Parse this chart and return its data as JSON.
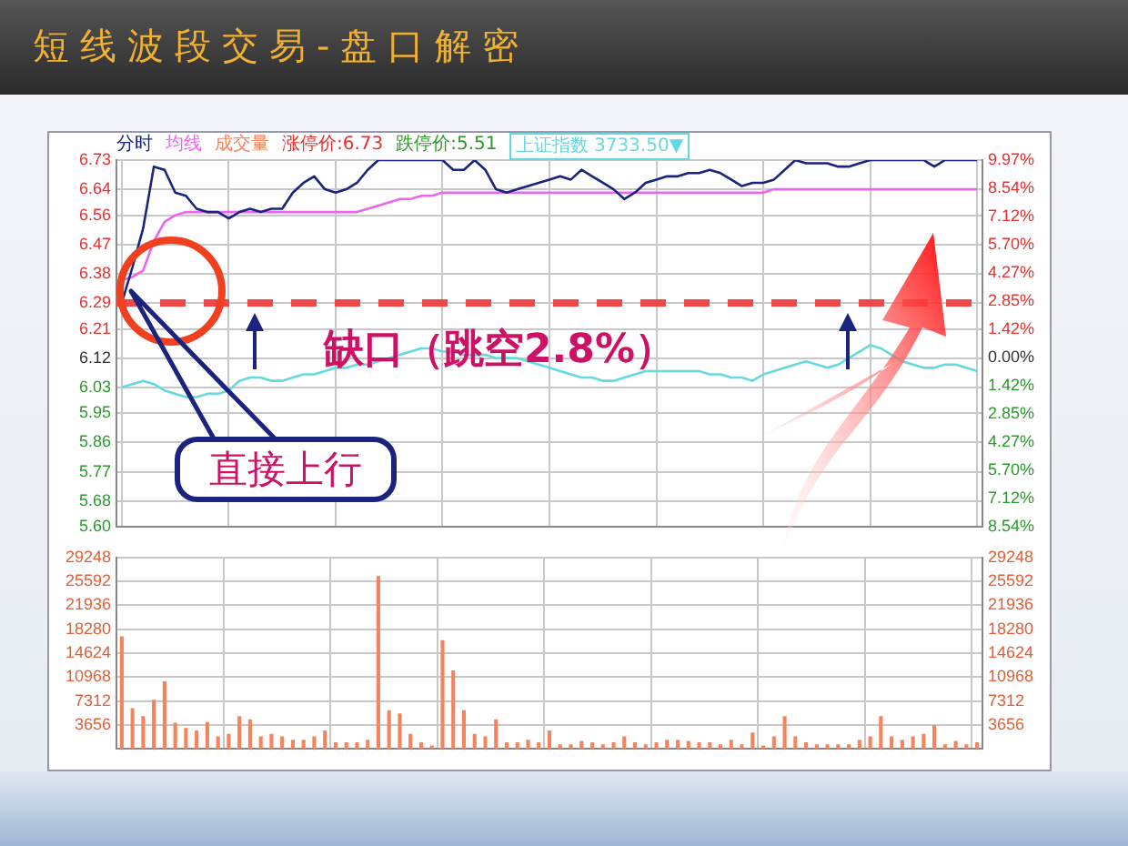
{
  "chart_data": [
    {
      "type": "line",
      "title": "短线波段交易-盘口解密",
      "categories": [
        null,
        null,
        null,
        null,
        null,
        null,
        null,
        null,
        null,
        null,
        null,
        null,
        null,
        null,
        null,
        null,
        null,
        null,
        null,
        null,
        null,
        null,
        null,
        null,
        null,
        null,
        null,
        null,
        null,
        null,
        null,
        null,
        null,
        null,
        null,
        null,
        null,
        null,
        null,
        null,
        null,
        null,
        null,
        null,
        null,
        null,
        null,
        null,
        null,
        null,
        null,
        null,
        null,
        null,
        null,
        null,
        null,
        null,
        null,
        null,
        null,
        null,
        null,
        null,
        null,
        null,
        null,
        null,
        null,
        null,
        null,
        null,
        null,
        null,
        null,
        null,
        null,
        null,
        null,
        null,
        null
      ],
      "series": [
        {
          "name": "分时",
          "color": "#1a237e",
          "values": [
            6.29,
            6.4,
            6.52,
            6.71,
            6.7,
            6.63,
            6.62,
            6.58,
            6.57,
            6.57,
            6.55,
            6.57,
            6.58,
            6.57,
            6.58,
            6.58,
            6.63,
            6.66,
            6.68,
            6.64,
            6.63,
            6.64,
            6.66,
            6.7,
            6.73,
            6.73,
            6.73,
            6.73,
            6.73,
            6.73,
            6.73,
            6.7,
            6.7,
            6.73,
            6.7,
            6.64,
            6.63,
            6.64,
            6.65,
            6.66,
            6.67,
            6.68,
            6.67,
            6.7,
            6.68,
            6.66,
            6.64,
            6.61,
            6.63,
            6.66,
            6.67,
            6.68,
            6.68,
            6.69,
            6.69,
            6.7,
            6.69,
            6.67,
            6.65,
            6.66,
            6.66,
            6.67,
            6.7,
            6.73,
            6.72,
            6.72,
            6.72,
            6.71,
            6.71,
            6.72,
            6.73,
            6.73,
            6.73,
            6.73,
            6.73,
            6.73,
            6.71,
            6.73,
            6.73,
            6.73,
            6.73
          ]
        },
        {
          "name": "均线",
          "color": "#ee66ee",
          "values": [
            6.36,
            6.37,
            6.39,
            6.48,
            6.54,
            6.56,
            6.57,
            6.57,
            6.57,
            6.57,
            6.57,
            6.57,
            6.57,
            6.57,
            6.57,
            6.57,
            6.57,
            6.57,
            6.57,
            6.57,
            6.57,
            6.57,
            6.57,
            6.58,
            6.59,
            6.6,
            6.61,
            6.61,
            6.62,
            6.62,
            6.63,
            6.63,
            6.63,
            6.63,
            6.63,
            6.63,
            6.63,
            6.63,
            6.63,
            6.63,
            6.63,
            6.63,
            6.63,
            6.63,
            6.63,
            6.63,
            6.63,
            6.63,
            6.63,
            6.63,
            6.63,
            6.63,
            6.63,
            6.63,
            6.63,
            6.63,
            6.63,
            6.63,
            6.63,
            6.63,
            6.63,
            6.64,
            6.64,
            6.64,
            6.64,
            6.64,
            6.64,
            6.64,
            6.64,
            6.64,
            6.64,
            6.64,
            6.64,
            6.64,
            6.64,
            6.64,
            6.64,
            6.64,
            6.64,
            6.64,
            6.64
          ]
        },
        {
          "name": "上证指数",
          "color": "#66d9e0",
          "values": [
            6.03,
            6.04,
            6.05,
            6.04,
            6.02,
            6.01,
            6.0,
            6.0,
            6.01,
            6.01,
            6.02,
            6.05,
            6.06,
            6.06,
            6.05,
            6.05,
            6.06,
            6.07,
            6.07,
            6.08,
            6.09,
            6.09,
            6.1,
            6.1,
            6.11,
            6.12,
            6.13,
            6.14,
            6.15,
            6.15,
            6.14,
            6.14,
            6.13,
            6.13,
            6.13,
            6.12,
            6.12,
            6.12,
            6.11,
            6.1,
            6.09,
            6.08,
            6.07,
            6.06,
            6.06,
            6.05,
            6.05,
            6.06,
            6.07,
            6.08,
            6.08,
            6.08,
            6.08,
            6.08,
            6.08,
            6.07,
            6.07,
            6.06,
            6.06,
            6.05,
            6.07,
            6.08,
            6.09,
            6.1,
            6.11,
            6.1,
            6.09,
            6.1,
            6.12,
            6.14,
            6.16,
            6.15,
            6.13,
            6.11,
            6.1,
            6.09,
            6.09,
            6.1,
            6.1,
            6.09,
            6.08
          ]
        }
      ],
      "ylim": [
        5.6,
        6.73
      ],
      "yticks": [
        {
          "value": 5.6,
          "label": "5.60"
        },
        5.68,
        5.77,
        5.86,
        5.95,
        6.03,
        6.12,
        6.21,
        6.29,
        6.38,
        6.47,
        6.56,
        6.64,
        6.73
      ],
      "y2lim": [
        -8.54,
        9.97
      ],
      "y2ticks": [
        {
          "value": -8.54,
          "label": "8.54%"
        },
        {
          "value": -7.12,
          "label": "7.12%"
        },
        {
          "value": -5.7,
          "label": "5.70%"
        },
        {
          "value": -4.27,
          "label": "4.27%"
        },
        {
          "value": -2.85,
          "label": "2.85%"
        },
        {
          "value": -1.42,
          "label": "1.42%"
        },
        {
          "value": 0,
          "label": "0.00%"
        },
        {
          "value": 1.42,
          "label": "1.42%"
        },
        {
          "value": 2.85,
          "label": "2.85%"
        },
        {
          "value": 4.27,
          "label": "4.27%"
        },
        {
          "value": 5.7,
          "label": "5.70%"
        },
        {
          "value": 7.12,
          "label": "7.12%"
        },
        {
          "value": 8.54,
          "label": "8.54%"
        },
        {
          "value": 9.97,
          "label": "9.97%"
        }
      ],
      "grid": true,
      "legend": "top left",
      "ref_lines": [
        {
          "axis": "y",
          "value": 6.29,
          "color": "#f04848",
          "line_style": "dashed"
        }
      ],
      "annotations": [
        "涨停价:6.73",
        "跌停价:5.51",
        "3733.50▼",
        "缺口（跳空2.8%）",
        "直接上行"
      ]
    },
    {
      "type": "bar",
      "categories": [
        null,
        null,
        null,
        null,
        null,
        null,
        null,
        null,
        null,
        null,
        null,
        null,
        null,
        null,
        null,
        null,
        null,
        null,
        null,
        null,
        null,
        null,
        null,
        null,
        null,
        null,
        null,
        null,
        null,
        null,
        null,
        null,
        null,
        null,
        null,
        null,
        null,
        null,
        null,
        null,
        null,
        null,
        null,
        null,
        null,
        null,
        null,
        null,
        null,
        null,
        null,
        null,
        null,
        null,
        null,
        null,
        null,
        null,
        null,
        null,
        null,
        null,
        null,
        null,
        null,
        null,
        null,
        null,
        null,
        null,
        null,
        null,
        null,
        null,
        null,
        null,
        null,
        null,
        null,
        null,
        null
      ],
      "series": [
        {
          "name": "成交量",
          "color": "#f4845f",
          "values": [
            17200,
            6200,
            5000,
            7500,
            10300,
            4000,
            3200,
            2800,
            4100,
            1900,
            2300,
            5000,
            4500,
            1900,
            2300,
            1900,
            1400,
            1400,
            1900,
            2800,
            1000,
            1000,
            1000,
            1400,
            26400,
            5900,
            5400,
            2300,
            1000,
            500,
            16600,
            12000,
            5900,
            2300,
            1900,
            4500,
            1000,
            1000,
            1400,
            1000,
            2800,
            700,
            700,
            1200,
            1000,
            700,
            1000,
            1900,
            1000,
            700,
            1000,
            1400,
            1400,
            1200,
            1000,
            1000,
            700,
            1400,
            700,
            2500,
            500,
            1900,
            5000,
            1900,
            1000,
            700,
            700,
            700,
            700,
            1400,
            1900,
            5000,
            1900,
            1400,
            1900,
            2300,
            3600,
            700,
            1200,
            700,
            1000
          ]
        }
      ],
      "ylim": [
        0,
        29248
      ],
      "yticks": [
        3656,
        7312,
        10968,
        14624,
        18280,
        21936,
        25592,
        29248
      ],
      "y2lim": [
        0,
        29248
      ],
      "y2ticks": [
        3656,
        7312,
        10968,
        14624,
        18280,
        21936,
        25592,
        29248
      ],
      "grid": true
    }
  ]
}
